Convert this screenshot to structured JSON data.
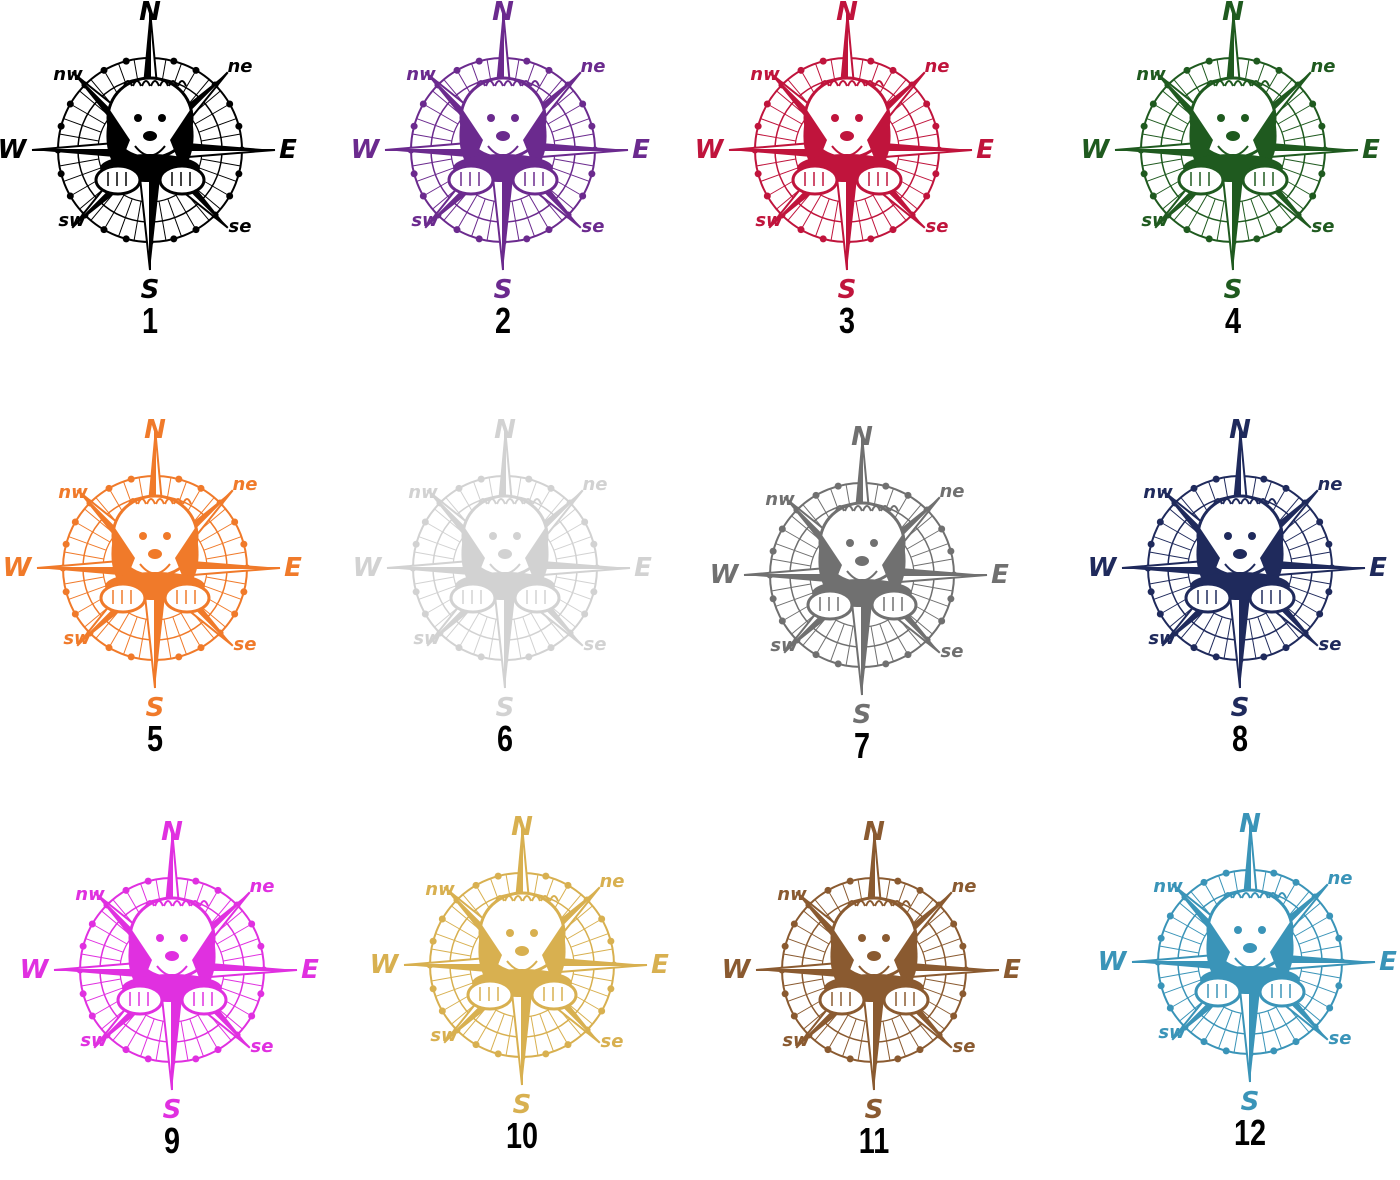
{
  "compass_labels": {
    "n": "N",
    "s": "S",
    "e": "E",
    "w": "W",
    "ne": "ne",
    "nw": "nw",
    "se": "se",
    "sw": "sw"
  },
  "variants": [
    {
      "number": "1",
      "color": "#000000"
    },
    {
      "number": "2",
      "color": "#6b2a8e"
    },
    {
      "number": "3",
      "color": "#c0143c"
    },
    {
      "number": "4",
      "color": "#1f5a1f"
    },
    {
      "number": "5",
      "color": "#f07a2a"
    },
    {
      "number": "6",
      "color": "#d2d2d2"
    },
    {
      "number": "7",
      "color": "#707070"
    },
    {
      "number": "8",
      "color": "#1f2a5c"
    },
    {
      "number": "9",
      "color": "#e030e0"
    },
    {
      "number": "10",
      "color": "#d8b050"
    },
    {
      "number": "11",
      "color": "#8a5a30"
    },
    {
      "number": "12",
      "color": "#3a94b8"
    }
  ]
}
